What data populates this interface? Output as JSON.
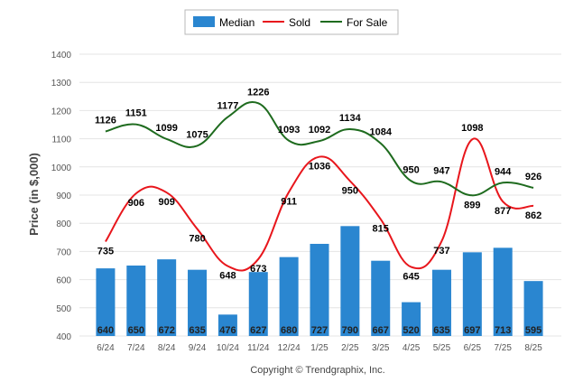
{
  "chart_data": {
    "type": "bar",
    "categories": [
      "6/24",
      "7/24",
      "8/24",
      "9/24",
      "10/24",
      "11/24",
      "12/24",
      "1/25",
      "2/25",
      "3/25",
      "4/25",
      "5/25",
      "6/25",
      "7/25",
      "8/25"
    ],
    "series": [
      {
        "name": "Median",
        "type": "bar",
        "color": "#2a86d0",
        "values": [
          640,
          650,
          672,
          635,
          476,
          627,
          680,
          727,
          790,
          667,
          520,
          635,
          697,
          713,
          595
        ]
      },
      {
        "name": "Sold",
        "type": "line",
        "color": "#e8161c",
        "values": [
          735,
          906,
          909,
          780,
          648,
          673,
          911,
          1036,
          950,
          815,
          645,
          737,
          1098,
          877,
          862
        ]
      },
      {
        "name": "For Sale",
        "type": "line",
        "color": "#1e6b1e",
        "values": [
          1126,
          1151,
          1099,
          1075,
          1177,
          1226,
          1093,
          1092,
          1134,
          1084,
          950,
          947,
          899,
          944,
          926
        ]
      }
    ],
    "ylabel": "Price (in $,000)",
    "xlabel": "",
    "ylim": [
      400,
      1400
    ],
    "yticks": [
      400,
      500,
      600,
      700,
      800,
      900,
      1000,
      1100,
      1200,
      1300,
      1400
    ],
    "grid": true,
    "legend_position": "top-center"
  },
  "legend": {
    "median_label": "Median",
    "sold_label": "Sold",
    "for_sale_label": "For Sale"
  },
  "footer": {
    "copyright": "Copyright © Trendgraphix, Inc."
  }
}
